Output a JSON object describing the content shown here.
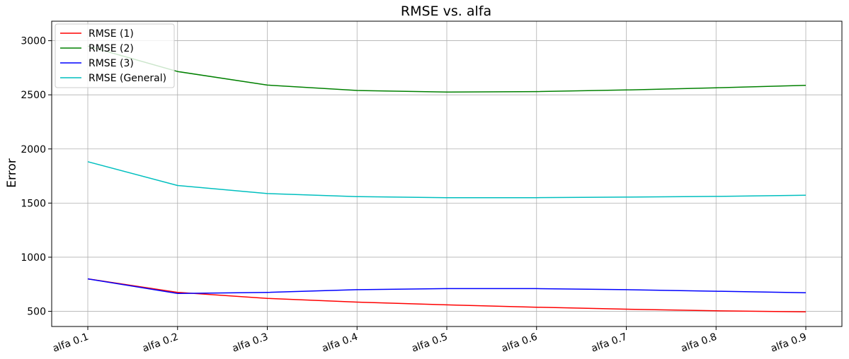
{
  "chart_data": {
    "type": "line",
    "title": "RMSE vs. alfa",
    "xlabel": "",
    "ylabel": "Error",
    "categories": [
      "alfa 0.1",
      "alfa 0.2",
      "alfa 0.3",
      "alfa 0.4",
      "alfa 0.5",
      "alfa 0.6",
      "alfa 0.7",
      "alfa 0.8",
      "alfa 0.9"
    ],
    "ylim": [
      360,
      3180
    ],
    "yticks": [
      500,
      1000,
      1500,
      2000,
      2500,
      3000
    ],
    "grid": true,
    "legend_position": "top-left",
    "series": [
      {
        "name": "RMSE (1)",
        "color": "#ff0000",
        "values": [
          800,
          675,
          620,
          585,
          560,
          538,
          520,
          505,
          495
        ]
      },
      {
        "name": "RMSE (2)",
        "color": "#008000",
        "values": [
          2950,
          2715,
          2590,
          2540,
          2525,
          2530,
          2545,
          2565,
          2588
        ]
      },
      {
        "name": "RMSE (3)",
        "color": "#0000ff",
        "values": [
          800,
          665,
          675,
          700,
          710,
          710,
          700,
          686,
          672
        ]
      },
      {
        "name": "RMSE (General)",
        "color": "#00bfbf",
        "values": [
          1882,
          1662,
          1588,
          1560,
          1550,
          1550,
          1555,
          1562,
          1572
        ]
      }
    ]
  }
}
